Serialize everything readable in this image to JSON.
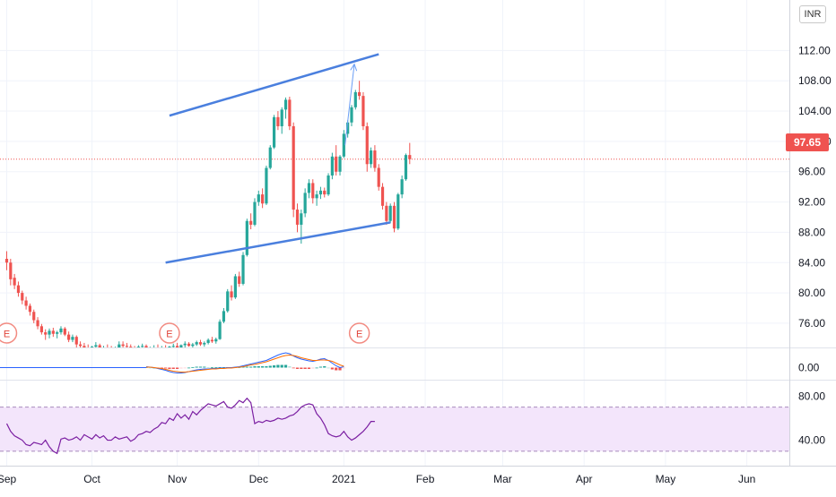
{
  "header": {
    "currency": "INR"
  },
  "last_price_label": "97.65",
  "colors": {
    "up": "#26a69a",
    "down": "#ef5350",
    "channel": "#4a7fde",
    "macd": "#2962ff",
    "signal": "#ff6d00",
    "rsi": "#7b1fa2",
    "rsi_band": "#f3e5fb",
    "grid": "#f0f3fa",
    "axis_text": "#131722"
  },
  "chart_data": [
    {
      "type": "candlestick",
      "name": "price",
      "y_ticks": [
        "76.00",
        "80.00",
        "84.00",
        "88.00",
        "92.00",
        "96.00",
        "100.00",
        "104.00",
        "108.00",
        "112.00"
      ],
      "ylim": [
        72.8,
        116.3
      ],
      "last_price": 97.65,
      "x_ticks": [
        {
          "label": "Sep",
          "idx": 0
        },
        {
          "label": "Oct",
          "idx": 22
        },
        {
          "label": "Nov",
          "idx": 44
        },
        {
          "label": "Dec",
          "idx": 65
        },
        {
          "label": "2021",
          "idx": 87
        },
        {
          "label": "Feb",
          "idx": 108
        },
        {
          "label": "Mar",
          "idx": 128
        },
        {
          "label": "Apr",
          "idx": 149
        },
        {
          "label": "May",
          "idx": 170
        },
        {
          "label": "Jun",
          "idx": 191
        }
      ],
      "candles": [
        [
          84.5,
          85.5,
          83.0,
          84.0
        ],
        [
          84.0,
          84.5,
          81.0,
          81.8
        ],
        [
          82.0,
          82.5,
          80.5,
          81.0
        ],
        [
          81.0,
          81.5,
          79.5,
          80.0
        ],
        [
          80.0,
          80.3,
          78.5,
          79.0
        ],
        [
          79.0,
          79.5,
          77.8,
          78.3
        ],
        [
          78.3,
          78.6,
          77.0,
          77.5
        ],
        [
          77.5,
          77.8,
          76.0,
          76.4
        ],
        [
          76.4,
          76.8,
          75.2,
          75.6
        ],
        [
          75.6,
          75.9,
          74.5,
          74.8
        ],
        [
          74.8,
          75.2,
          73.8,
          74.5
        ],
        [
          74.5,
          75.3,
          74.0,
          75.0
        ],
        [
          75.0,
          75.4,
          74.2,
          74.6
        ],
        [
          74.6,
          75.0,
          74.0,
          74.8
        ],
        [
          74.8,
          75.6,
          74.5,
          75.3
        ],
        [
          75.3,
          75.5,
          74.3,
          74.5
        ],
        [
          74.5,
          74.9,
          73.5,
          73.8
        ],
        [
          73.8,
          74.5,
          73.5,
          74.2
        ],
        [
          74.2,
          74.4,
          72.8,
          73.2
        ],
        [
          73.2,
          73.6,
          72.5,
          73.0
        ],
        [
          73.0,
          73.4,
          72.4,
          72.8
        ],
        [
          72.8,
          73.2,
          72.3,
          72.6
        ],
        [
          72.6,
          73.0,
          72.2,
          72.9
        ],
        [
          72.9,
          73.5,
          72.6,
          73.1
        ],
        [
          73.1,
          73.3,
          72.3,
          72.5
        ],
        [
          72.5,
          73.0,
          72.0,
          72.8
        ],
        [
          72.8,
          73.2,
          72.4,
          72.6
        ],
        [
          72.6,
          73.0,
          72.1,
          72.4
        ],
        [
          72.4,
          72.9,
          72.0,
          72.7
        ],
        [
          72.7,
          73.6,
          72.5,
          73.2
        ],
        [
          73.2,
          73.6,
          72.8,
          73.0
        ],
        [
          73.0,
          73.4,
          72.6,
          72.9
        ],
        [
          72.9,
          73.2,
          72.4,
          72.7
        ],
        [
          72.7,
          73.0,
          72.3,
          72.6
        ],
        [
          72.6,
          73.1,
          72.2,
          72.9
        ],
        [
          72.9,
          73.3,
          72.5,
          73.0
        ],
        [
          73.0,
          73.2,
          72.3,
          72.5
        ],
        [
          72.5,
          72.9,
          72.1,
          72.7
        ],
        [
          72.7,
          73.1,
          72.4,
          72.8
        ],
        [
          72.8,
          73.2,
          72.5,
          72.6
        ],
        [
          72.6,
          73.0,
          72.2,
          72.8
        ],
        [
          72.8,
          73.1,
          72.4,
          72.7
        ],
        [
          72.7,
          73.0,
          72.3,
          72.9
        ],
        [
          72.9,
          73.3,
          72.6,
          73.0
        ],
        [
          73.0,
          73.4,
          72.7,
          72.8
        ],
        [
          72.8,
          73.2,
          72.5,
          73.1
        ],
        [
          73.1,
          73.6,
          72.8,
          73.3
        ],
        [
          73.3,
          73.5,
          72.9,
          73.0
        ],
        [
          73.0,
          73.4,
          72.7,
          73.2
        ],
        [
          73.2,
          73.7,
          73.0,
          73.5
        ],
        [
          73.5,
          73.8,
          73.0,
          73.2
        ],
        [
          73.2,
          73.6,
          72.9,
          73.4
        ],
        [
          73.4,
          74.0,
          73.2,
          73.8
        ],
        [
          73.8,
          74.2,
          73.4,
          73.6
        ],
        [
          73.6,
          74.1,
          73.3,
          73.9
        ],
        [
          73.9,
          76.5,
          73.8,
          76.2
        ],
        [
          76.2,
          78.0,
          76.0,
          77.6
        ],
        [
          77.6,
          80.5,
          77.4,
          80.2
        ],
        [
          80.2,
          81.0,
          79.0,
          79.4
        ],
        [
          79.4,
          82.5,
          79.2,
          82.2
        ],
        [
          82.2,
          82.8,
          80.8,
          81.2
        ],
        [
          81.2,
          85.4,
          81.0,
          85.0
        ],
        [
          85.0,
          89.8,
          84.8,
          89.5
        ],
        [
          89.5,
          90.5,
          88.4,
          89.0
        ],
        [
          89.0,
          92.5,
          88.8,
          92.0
        ],
        [
          92.0,
          93.5,
          91.5,
          93.0
        ],
        [
          93.0,
          93.8,
          91.2,
          91.8
        ],
        [
          91.8,
          96.8,
          91.6,
          96.5
        ],
        [
          96.5,
          99.5,
          96.3,
          99.2
        ],
        [
          99.2,
          103.5,
          99.0,
          103.2
        ],
        [
          103.2,
          104.0,
          101.5,
          102.0
        ],
        [
          102.0,
          104.5,
          101.0,
          104.2
        ],
        [
          104.2,
          105.8,
          103.0,
          105.5
        ],
        [
          105.5,
          105.9,
          101.5,
          102.0
        ],
        [
          102.0,
          102.5,
          90.0,
          91.0
        ],
        [
          91.0,
          91.8,
          88.0,
          89.0
        ],
        [
          89.0,
          91.0,
          86.5,
          90.5
        ],
        [
          90.5,
          93.8,
          90.0,
          93.2
        ],
        [
          93.2,
          95.0,
          92.5,
          94.5
        ],
        [
          94.5,
          95.0,
          91.8,
          92.5
        ],
        [
          92.5,
          93.5,
          91.5,
          93.0
        ],
        [
          93.0,
          94.0,
          92.4,
          93.5
        ],
        [
          93.5,
          93.9,
          92.6,
          93.0
        ],
        [
          93.0,
          95.8,
          92.8,
          95.5
        ],
        [
          95.5,
          98.5,
          95.0,
          98.0
        ],
        [
          98.0,
          99.5,
          95.5,
          96.0
        ],
        [
          96.0,
          98.2,
          95.5,
          98.0
        ],
        [
          98.0,
          101.5,
          97.8,
          101.0
        ],
        [
          101.0,
          102.8,
          100.5,
          102.5
        ],
        [
          102.5,
          104.8,
          102.0,
          104.5
        ],
        [
          104.5,
          106.8,
          104.2,
          106.5
        ],
        [
          106.5,
          108.0,
          105.5,
          106.0
        ],
        [
          106.0,
          106.5,
          101.5,
          102.0
        ],
        [
          102.0,
          102.5,
          96.0,
          97.0
        ],
        [
          97.0,
          99.2,
          96.5,
          98.8
        ],
        [
          98.8,
          99.5,
          96.0,
          96.5
        ],
        [
          96.5,
          97.0,
          93.5,
          94.0
        ],
        [
          94.0,
          94.5,
          91.0,
          91.5
        ],
        [
          91.5,
          92.0,
          89.0,
          89.5
        ],
        [
          89.5,
          91.8,
          89.2,
          91.5
        ],
        [
          91.5,
          92.0,
          88.0,
          88.5
        ],
        [
          88.5,
          93.2,
          88.3,
          93.0
        ],
        [
          93.0,
          95.5,
          92.5,
          95.0
        ],
        [
          95.0,
          98.4,
          94.8,
          98.2
        ],
        [
          98.2,
          99.8,
          97.0,
          97.65
        ]
      ],
      "channel_upper": [
        [
          42,
          103.4
        ],
        [
          96,
          111.5
        ]
      ],
      "channel_lower": [
        [
          41,
          84.0
        ],
        [
          99,
          89.3
        ]
      ],
      "projection": [
        [
          87.3,
          99.5
        ],
        [
          89.7,
          110.2
        ]
      ],
      "earnings_markers": [
        {
          "label": "E",
          "idx": 0
        },
        {
          "label": "E",
          "idx": 42
        },
        {
          "label": "E",
          "idx": 91
        }
      ]
    },
    {
      "type": "line",
      "name": "macd",
      "y_ticks": [
        "0.00"
      ],
      "ylim": [
        -2.5,
        3.5
      ],
      "x_range": [
        36,
        87
      ],
      "series": [
        {
          "line": "macd",
          "values": [
            0.2,
            0.1,
            0.0,
            -0.2,
            -0.4,
            -0.6,
            -0.9,
            -1.1,
            -1.2,
            -1.2,
            -1.1,
            -0.9,
            -0.7,
            -0.5,
            -0.4,
            -0.3,
            -0.3,
            -0.2,
            -0.2,
            -0.1,
            -0.1,
            0.0,
            0.0,
            0.1,
            0.2,
            0.4,
            0.6,
            0.8,
            1.0,
            1.2,
            1.4,
            1.6,
            2.0,
            2.4,
            2.8,
            3.1,
            3.3,
            3.1,
            2.6,
            2.2,
            1.9,
            1.7,
            1.5,
            1.4,
            1.6,
            1.9,
            2.0,
            1.6,
            1.0,
            0.4,
            0.0,
            0.2
          ]
        },
        {
          "line": "signal",
          "values": [
            0.1,
            0.1,
            0.0,
            -0.1,
            -0.2,
            -0.4,
            -0.6,
            -0.8,
            -0.9,
            -1.0,
            -1.0,
            -0.9,
            -0.8,
            -0.7,
            -0.6,
            -0.5,
            -0.4,
            -0.3,
            -0.3,
            -0.2,
            -0.2,
            -0.1,
            -0.1,
            0.0,
            0.1,
            0.2,
            0.4,
            0.6,
            0.7,
            0.9,
            1.1,
            1.3,
            1.6,
            1.9,
            2.2,
            2.5,
            2.7,
            2.8,
            2.7,
            2.5,
            2.2,
            2.0,
            1.8,
            1.6,
            1.6,
            1.7,
            1.7,
            1.6,
            1.4,
            1.0,
            0.6,
            0.3
          ]
        }
      ],
      "histogram": [
        0.1,
        0.0,
        0.0,
        -0.1,
        -0.2,
        -0.2,
        -0.3,
        -0.3,
        -0.3,
        -0.2,
        -0.1,
        0.0,
        0.1,
        0.2,
        0.2,
        0.2,
        0.1,
        0.1,
        0.1,
        0.1,
        0.1,
        0.1,
        0.1,
        0.1,
        0.1,
        0.2,
        0.2,
        0.2,
        0.3,
        0.3,
        0.3,
        0.3,
        0.4,
        0.5,
        0.6,
        0.6,
        0.6,
        0.3,
        -0.1,
        -0.3,
        -0.3,
        -0.3,
        -0.3,
        -0.2,
        0.0,
        0.2,
        0.3,
        0.0,
        -0.4,
        -0.6,
        -0.6,
        -0.1
      ]
    },
    {
      "type": "line",
      "name": "rsi",
      "y_ticks": [
        "40.00",
        "80.00"
      ],
      "ylim": [
        25,
        90
      ],
      "band": [
        30,
        70
      ],
      "values": [
        55,
        48,
        44,
        42,
        40,
        36,
        35,
        38,
        37,
        36,
        40,
        34,
        30,
        28,
        41,
        42,
        40,
        41,
        43,
        40,
        45,
        43,
        41,
        45,
        42,
        44,
        40,
        40,
        43,
        41,
        42,
        43,
        39,
        41,
        45,
        46,
        48,
        47,
        50,
        52,
        56,
        55,
        60,
        58,
        64,
        60,
        63,
        59,
        66,
        63,
        67,
        70,
        73,
        72,
        71,
        73,
        75,
        70,
        69,
        72,
        76,
        74,
        78,
        74,
        55,
        57,
        56,
        58,
        57,
        58,
        60,
        59,
        60,
        62,
        63,
        66,
        70,
        72,
        73,
        72,
        64,
        60,
        54,
        46,
        44,
        43,
        44,
        48,
        43,
        40,
        42,
        45,
        48,
        52,
        57,
        57
      ]
    }
  ]
}
